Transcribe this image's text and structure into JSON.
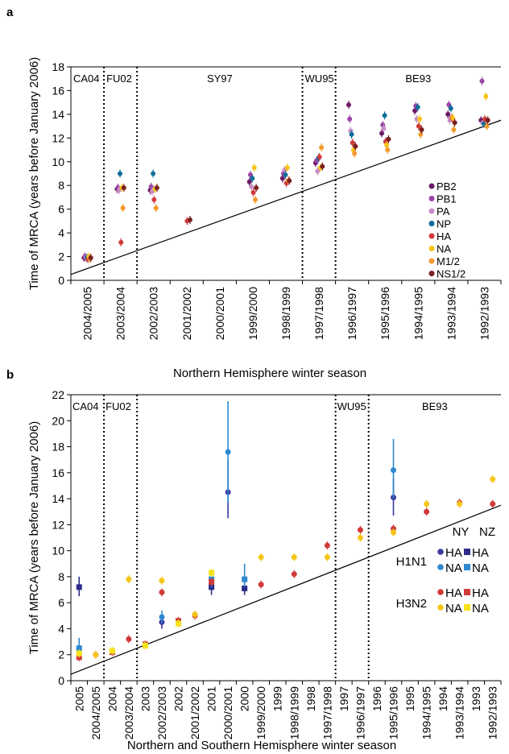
{
  "chart_data": [
    {
      "type": "scatter",
      "panel_label": "a",
      "ylabel": "Time of MRCA (years before January 2006)",
      "xlabel": "Northern Hemisphere winter season",
      "ylim": [
        0,
        18
      ],
      "yticks": [
        0,
        2,
        4,
        6,
        8,
        10,
        12,
        14,
        16,
        18
      ],
      "categories": [
        "2004/2005",
        "2003/2004",
        "2002/2003",
        "2001/2002",
        "2000/2001",
        "1999/2000",
        "1998/1999",
        "1997/1998",
        "1996/1997",
        "1995/1996",
        "1994/1995",
        "1993/1994",
        "1992/1993"
      ],
      "regions": [
        {
          "label": "CA04",
          "from": 0,
          "to": 1
        },
        {
          "label": "FU02",
          "from": 1,
          "to": 2
        },
        {
          "label": "SY97",
          "from": 2,
          "to": 7
        },
        {
          "label": "WU95",
          "from": 7,
          "to": 8
        },
        {
          "label": "BE93",
          "from": 8,
          "to": 13
        }
      ],
      "dividers": [
        1,
        2,
        7,
        8
      ],
      "legend_position": "right",
      "series": [
        {
          "name": "PB2",
          "color": "#6b1a66",
          "points": [
            {
              "x": 0,
              "y": 1.9
            },
            {
              "x": 1,
              "y": 7.7
            },
            {
              "x": 2,
              "y": 7.6
            },
            {
              "x": 5,
              "y": 8.3
            },
            {
              "x": 6,
              "y": 8.6
            },
            {
              "x": 7,
              "y": 9.9
            },
            {
              "x": 8,
              "y": 14.8
            },
            {
              "x": 9,
              "y": 12.4
            },
            {
              "x": 10,
              "y": 14.3
            },
            {
              "x": 11,
              "y": 14.0
            },
            {
              "x": 12,
              "y": 13.5
            }
          ]
        },
        {
          "name": "PB1",
          "color": "#9b44a8",
          "points": [
            {
              "x": 0,
              "y": 2.0
            },
            {
              "x": 1,
              "y": 7.8
            },
            {
              "x": 2,
              "y": 7.9
            },
            {
              "x": 5,
              "y": 8.9
            },
            {
              "x": 6,
              "y": 9.0
            },
            {
              "x": 7,
              "y": 10.1
            },
            {
              "x": 8,
              "y": 13.6
            },
            {
              "x": 9,
              "y": 13.1
            },
            {
              "x": 10,
              "y": 14.7
            },
            {
              "x": 11,
              "y": 14.8
            },
            {
              "x": 12,
              "y": 16.8
            }
          ]
        },
        {
          "name": "PA",
          "color": "#c88ec4",
          "points": [
            {
              "x": 0,
              "y": 1.9
            },
            {
              "x": 1,
              "y": 7.6
            },
            {
              "x": 2,
              "y": 7.5
            },
            {
              "x": 5,
              "y": 7.9
            },
            {
              "x": 6,
              "y": 9.3
            },
            {
              "x": 7,
              "y": 9.2
            },
            {
              "x": 8,
              "y": 12.6
            },
            {
              "x": 9,
              "y": 12.8
            },
            {
              "x": 10,
              "y": 13.6
            },
            {
              "x": 11,
              "y": 13.5
            },
            {
              "x": 12,
              "y": 13.3
            }
          ]
        },
        {
          "name": "NP",
          "color": "#0f6e9a",
          "points": [
            {
              "x": 0,
              "y": 1.9
            },
            {
              "x": 1,
              "y": 9.0
            },
            {
              "x": 2,
              "y": 9.0
            },
            {
              "x": 5,
              "y": 8.6
            },
            {
              "x": 6,
              "y": 8.9
            },
            {
              "x": 7,
              "y": 10.3
            },
            {
              "x": 8,
              "y": 12.3
            },
            {
              "x": 9,
              "y": 13.9
            },
            {
              "x": 10,
              "y": 14.6
            },
            {
              "x": 11,
              "y": 14.5
            },
            {
              "x": 12,
              "y": 13.2
            }
          ]
        },
        {
          "name": "HA",
          "color": "#d13a3a",
          "points": [
            {
              "x": 0,
              "y": 1.8
            },
            {
              "x": 1,
              "y": 3.2
            },
            {
              "x": 2,
              "y": 6.8
            },
            {
              "x": 3,
              "y": 5.0
            },
            {
              "x": 5,
              "y": 7.4
            },
            {
              "x": 6,
              "y": 8.2
            },
            {
              "x": 7,
              "y": 10.4
            },
            {
              "x": 8,
              "y": 11.6
            },
            {
              "x": 9,
              "y": 11.7
            },
            {
              "x": 10,
              "y": 13.0
            },
            {
              "x": 11,
              "y": 13.7
            },
            {
              "x": 12,
              "y": 13.6
            }
          ]
        },
        {
          "name": "NA",
          "color": "#f5c518",
          "points": [
            {
              "x": 0,
              "y": 2.0
            },
            {
              "x": 1,
              "y": 7.8
            },
            {
              "x": 2,
              "y": 7.7
            },
            {
              "x": 5,
              "y": 9.5
            },
            {
              "x": 6,
              "y": 9.5
            },
            {
              "x": 7,
              "y": 9.5
            },
            {
              "x": 8,
              "y": 11.0
            },
            {
              "x": 9,
              "y": 11.4
            },
            {
              "x": 10,
              "y": 13.6
            },
            {
              "x": 11,
              "y": 13.7
            },
            {
              "x": 12,
              "y": 15.5
            }
          ]
        },
        {
          "name": "M1/2",
          "color": "#f39a2b",
          "points": [
            {
              "x": 0,
              "y": 1.8
            },
            {
              "x": 1,
              "y": 6.1
            },
            {
              "x": 2,
              "y": 6.1
            },
            {
              "x": 5,
              "y": 6.8
            },
            {
              "x": 6,
              "y": 8.4
            },
            {
              "x": 7,
              "y": 11.2
            },
            {
              "x": 8,
              "y": 10.7
            },
            {
              "x": 9,
              "y": 11.0
            },
            {
              "x": 10,
              "y": 12.3
            },
            {
              "x": 11,
              "y": 12.7
            },
            {
              "x": 12,
              "y": 13.0
            }
          ]
        },
        {
          "name": "NS1/2",
          "color": "#7a1f1f",
          "points": [
            {
              "x": 0,
              "y": 1.9
            },
            {
              "x": 1,
              "y": 7.8
            },
            {
              "x": 2,
              "y": 7.8
            },
            {
              "x": 3,
              "y": 5.1
            },
            {
              "x": 5,
              "y": 7.8
            },
            {
              "x": 6,
              "y": 8.4
            },
            {
              "x": 7,
              "y": 9.6
            },
            {
              "x": 8,
              "y": 11.3
            },
            {
              "x": 9,
              "y": 11.9
            },
            {
              "x": 10,
              "y": 12.7
            },
            {
              "x": 11,
              "y": 13.3
            },
            {
              "x": 12,
              "y": 13.5
            }
          ]
        }
      ]
    },
    {
      "type": "scatter",
      "panel_label": "b",
      "ylabel": "Time of MRCA (years before January 2006)",
      "xlabel": "Northern and Southern Hemisphere winter season",
      "ylim": [
        0,
        22
      ],
      "yticks": [
        0,
        2,
        4,
        6,
        8,
        10,
        12,
        14,
        16,
        18,
        20,
        22
      ],
      "categories": [
        "2005",
        "2004/2005",
        "2004",
        "2003/2004",
        "2003",
        "2002/2003",
        "2002",
        "2001/2002",
        "2001",
        "2000/2001",
        "2000",
        "1999/2000",
        "1999",
        "1998/1999",
        "1998",
        "1997/1998",
        "1997",
        "1996/1997",
        "1996",
        "1995/1996",
        "1995",
        "1994/1995",
        "1994",
        "1993/1994",
        "1993",
        "1992/1993"
      ],
      "regions": [
        {
          "label": "CA04",
          "from": 0,
          "to": 2
        },
        {
          "label": "FU02",
          "from": 2,
          "to": 4
        },
        {
          "label": "WU95",
          "from": 16,
          "to": 18
        },
        {
          "label": "BE93",
          "from": 18,
          "to": 26
        }
      ],
      "dividers": [
        2,
        4,
        16,
        18
      ],
      "legend": {
        "col_headers": [
          "NY",
          "NZ"
        ],
        "row_headers": [
          "H1N1",
          "H3N2"
        ],
        "entry_labels": [
          "HA",
          "NA"
        ]
      },
      "legend_position": "right",
      "series": [
        {
          "name": "HA",
          "group": "H1N1",
          "site": "NY",
          "marker": "circle",
          "color": "#3a3a9e",
          "points": [
            {
              "x": 5,
              "y": 4.5,
              "lo": 4.0,
              "hi": 5.0
            },
            {
              "x": 9,
              "y": 14.5,
              "lo": 12.5,
              "hi": 17.0
            },
            {
              "x": 19,
              "y": 14.1,
              "lo": 12.7,
              "hi": 15.5
            }
          ]
        },
        {
          "name": "NA",
          "group": "H1N1",
          "site": "NY",
          "marker": "circle",
          "color": "#2d88cf",
          "points": [
            {
              "x": 5,
              "y": 4.9,
              "lo": 4.4,
              "hi": 5.4
            },
            {
              "x": 9,
              "y": 17.6,
              "lo": 13.7,
              "hi": 21.5
            },
            {
              "x": 19,
              "y": 16.2,
              "lo": 14.0,
              "hi": 18.6
            }
          ]
        },
        {
          "name": "HA",
          "group": "H1N1",
          "site": "NZ",
          "marker": "square",
          "color": "#2b2b8a",
          "points": [
            {
              "x": 0,
              "y": 7.2,
              "lo": 6.5,
              "hi": 8.0
            },
            {
              "x": 8,
              "y": 7.2,
              "lo": 6.6,
              "hi": 7.8
            },
            {
              "x": 10,
              "y": 7.1,
              "lo": 6.6,
              "hi": 7.6
            }
          ]
        },
        {
          "name": "NA",
          "group": "H1N1",
          "site": "NZ",
          "marker": "square",
          "color": "#2d88cf",
          "points": [
            {
              "x": 0,
              "y": 2.5,
              "lo": 1.9,
              "hi": 3.3
            },
            {
              "x": 8,
              "y": 7.8,
              "lo": 7.2,
              "hi": 8.4
            },
            {
              "x": 10,
              "y": 7.8,
              "lo": 7.2,
              "hi": 9.0
            }
          ]
        },
        {
          "name": "HA",
          "group": "H3N2",
          "site": "NY",
          "marker": "circle",
          "color": "#d13a3a",
          "points": [
            {
              "x": 1,
              "y": 2.0
            },
            {
              "x": 3,
              "y": 3.2
            },
            {
              "x": 5,
              "y": 6.8
            },
            {
              "x": 7,
              "y": 5.0
            },
            {
              "x": 11,
              "y": 7.4
            },
            {
              "x": 13,
              "y": 8.2
            },
            {
              "x": 15,
              "y": 10.4
            },
            {
              "x": 17,
              "y": 11.6
            },
            {
              "x": 19,
              "y": 11.7
            },
            {
              "x": 21,
              "y": 13.0
            },
            {
              "x": 23,
              "y": 13.7
            },
            {
              "x": 25,
              "y": 13.6
            }
          ]
        },
        {
          "name": "NA",
          "group": "H3N2",
          "site": "NY",
          "marker": "circle",
          "color": "#f5c518",
          "points": [
            {
              "x": 1,
              "y": 2.0
            },
            {
              "x": 3,
              "y": 7.8
            },
            {
              "x": 5,
              "y": 7.7
            },
            {
              "x": 7,
              "y": 5.1
            },
            {
              "x": 11,
              "y": 9.5
            },
            {
              "x": 13,
              "y": 9.5
            },
            {
              "x": 15,
              "y": 9.5
            },
            {
              "x": 17,
              "y": 11.0
            },
            {
              "x": 19,
              "y": 11.4
            },
            {
              "x": 21,
              "y": 13.6
            },
            {
              "x": 23,
              "y": 13.6
            },
            {
              "x": 25,
              "y": 15.5
            }
          ]
        },
        {
          "name": "HA",
          "group": "H3N2",
          "site": "NZ",
          "marker": "square",
          "color": "#d13a3a",
          "points": [
            {
              "x": 0,
              "y": 1.8
            },
            {
              "x": 2,
              "y": 2.2
            },
            {
              "x": 4,
              "y": 2.8
            },
            {
              "x": 6,
              "y": 4.6
            },
            {
              "x": 8,
              "y": 7.6
            }
          ]
        },
        {
          "name": "NA",
          "group": "H3N2",
          "site": "NZ",
          "marker": "square",
          "color": "#f5e21a",
          "points": [
            {
              "x": 0,
              "y": 2.1
            },
            {
              "x": 2,
              "y": 2.3
            },
            {
              "x": 4,
              "y": 2.7
            },
            {
              "x": 6,
              "y": 4.4
            },
            {
              "x": 8,
              "y": 8.3
            }
          ]
        }
      ]
    }
  ]
}
